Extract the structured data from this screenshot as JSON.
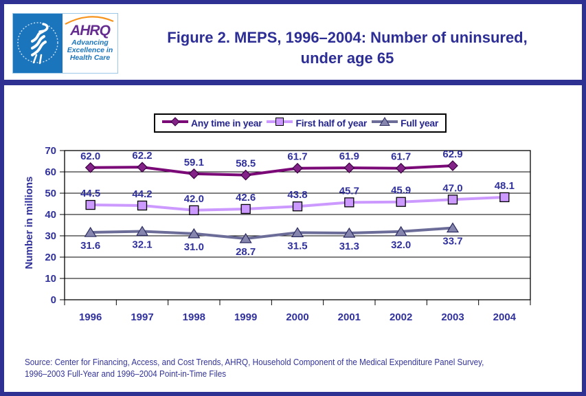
{
  "header": {
    "title_line1": "Figure 2. MEPS, 1996–2004: Number of uninsured,",
    "title_line2": "under age 65",
    "logo": {
      "hhs_seal_text": "DEPARTMENT OF HEALTH & HUMAN SERVICES · USA",
      "ahrq_acronym": "AHRQ",
      "tagline_line1": "Advancing",
      "tagline_line2": "Excellence in",
      "tagline_line3": "Health Care"
    }
  },
  "chart_data": {
    "type": "line",
    "categories": [
      "1996",
      "1997",
      "1998",
      "1999",
      "2000",
      "2001",
      "2002",
      "2003",
      "2004"
    ],
    "series": [
      {
        "name": "Any time in year",
        "marker": "diamond",
        "line_color": "#7B0877",
        "marker_fill": "#832387",
        "marker_stroke": "#3A0142",
        "label_position": "above",
        "values": [
          62.0,
          62.2,
          59.1,
          58.5,
          61.7,
          61.9,
          61.7,
          62.9,
          null
        ]
      },
      {
        "name": "First half of year",
        "marker": "square",
        "line_color": "#CC99FF",
        "marker_fill": "#CC99FF",
        "marker_stroke": "#000000",
        "label_position": "above",
        "values": [
          44.5,
          44.2,
          42.0,
          42.6,
          43.8,
          45.7,
          45.9,
          47.0,
          48.1
        ]
      },
      {
        "name": "Full year",
        "marker": "triangle",
        "line_color": "#6C6C99",
        "marker_fill": "#8585AD",
        "marker_stroke": "#2B2B60",
        "label_position": "below",
        "values": [
          31.6,
          32.1,
          31.0,
          28.7,
          31.5,
          31.3,
          32.0,
          33.7,
          null
        ]
      }
    ],
    "title": "",
    "xlabel": "",
    "ylabel": "Number in millions",
    "ylim": [
      0,
      70
    ],
    "yticks": [
      0,
      10,
      20,
      30,
      40,
      50,
      60,
      70
    ],
    "grid": true,
    "legend_position": "top",
    "value_label_format": "0.1f",
    "text_color": "#31319E",
    "grid_color": "#000000"
  },
  "source": {
    "line1": "Source: Center for Financing, Access, and Cost Trends, AHRQ, Household Component of the Medical Expenditure Panel Survey,",
    "line2": "1996–2003 Full-Year and 1996–2004 Point-in-Time Files"
  },
  "frame": {
    "border_color": "#2E3192"
  }
}
